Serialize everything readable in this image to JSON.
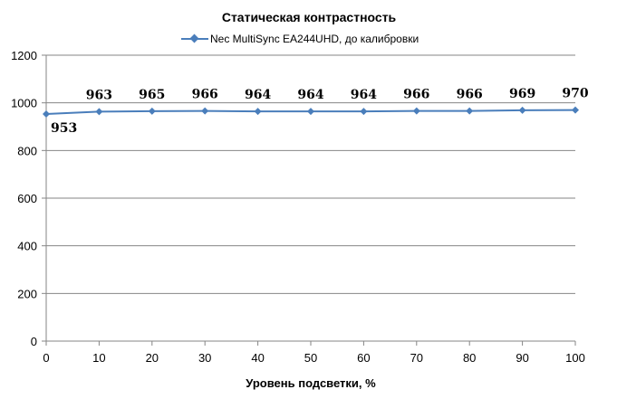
{
  "chart_data": {
    "type": "line",
    "title": "Статическая контрастность",
    "xlabel": "Уровень подсветки, %",
    "ylabel": "",
    "x": [
      0,
      10,
      20,
      30,
      40,
      50,
      60,
      70,
      80,
      90,
      100
    ],
    "xlim": [
      0,
      100
    ],
    "ylim": [
      0,
      1200
    ],
    "y_ticks": [
      0,
      200,
      400,
      600,
      800,
      1000,
      1200
    ],
    "grid": "horizontal",
    "legend_position": "top",
    "series": [
      {
        "name": "Nec MultiSync EA244UHD, до калибровки",
        "color": "#4a7ebb",
        "values": [
          953,
          963,
          965,
          966,
          964,
          964,
          964,
          966,
          966,
          969,
          970
        ],
        "data_labels": [
          "953",
          "963",
          "965",
          "966",
          "964",
          "964",
          "964",
          "966",
          "966",
          "969",
          "970"
        ]
      }
    ]
  }
}
